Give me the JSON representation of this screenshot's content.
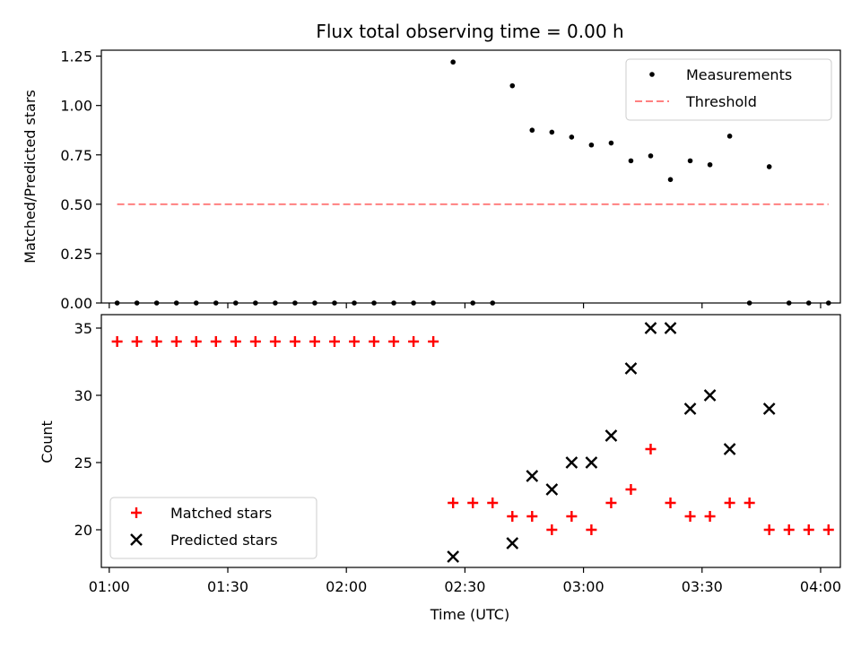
{
  "chart_data": {
    "title": "Flux total observing time = 0.00 h",
    "xlabel": "Time (UTC)",
    "xlim": [
      "00:58",
      "04:05"
    ],
    "xticks": [
      "01:00",
      "01:30",
      "02:00",
      "02:30",
      "03:00",
      "03:30",
      "04:00"
    ],
    "panels": [
      {
        "type": "scatter",
        "ylabel": "Matched/Predicted stars",
        "ylim": [
          0,
          1.28
        ],
        "yticks": [
          "0.00",
          "0.25",
          "0.50",
          "0.75",
          "1.00",
          "1.25"
        ],
        "legend": "top-right",
        "series": [
          {
            "name": "Measurements",
            "type": "scatter",
            "color": "#000000",
            "marker": "dot",
            "points": [
              [
                "01:02",
                0
              ],
              [
                "01:07",
                0
              ],
              [
                "01:12",
                0
              ],
              [
                "01:17",
                0
              ],
              [
                "01:22",
                0
              ],
              [
                "01:27",
                0
              ],
              [
                "01:32",
                0
              ],
              [
                "01:37",
                0
              ],
              [
                "01:42",
                0
              ],
              [
                "01:47",
                0
              ],
              [
                "01:52",
                0
              ],
              [
                "01:57",
                0
              ],
              [
                "02:02",
                0
              ],
              [
                "02:07",
                0
              ],
              [
                "02:12",
                0
              ],
              [
                "02:17",
                0
              ],
              [
                "02:22",
                0
              ],
              [
                "02:27",
                1.22
              ],
              [
                "02:32",
                0
              ],
              [
                "02:37",
                0
              ],
              [
                "02:42",
                1.1
              ],
              [
                "02:47",
                0.875
              ],
              [
                "02:52",
                0.865
              ],
              [
                "02:57",
                0.84
              ],
              [
                "03:02",
                0.8
              ],
              [
                "03:07",
                0.81
              ],
              [
                "03:12",
                0.72
              ],
              [
                "03:17",
                0.745
              ],
              [
                "03:22",
                0.625
              ],
              [
                "03:27",
                0.72
              ],
              [
                "03:32",
                0.7
              ],
              [
                "03:37",
                0.845
              ],
              [
                "03:42",
                0
              ],
              [
                "03:47",
                0.69
              ],
              [
                "03:52",
                0
              ],
              [
                "03:57",
                0
              ],
              [
                "04:02",
                0
              ]
            ]
          },
          {
            "name": "Threshold",
            "type": "line",
            "color": "#ff8080",
            "style": "dashed",
            "points": [
              [
                "01:02",
                0.5
              ],
              [
                "04:02",
                0.5
              ]
            ]
          }
        ]
      },
      {
        "type": "scatter",
        "ylabel": "Count",
        "ylim": [
          17.2,
          36
        ],
        "yticks": [
          "20",
          "25",
          "30",
          "35"
        ],
        "legend": "bottom-left",
        "series": [
          {
            "name": "Matched stars",
            "type": "scatter",
            "color": "#ff0000",
            "marker": "plus",
            "points": [
              [
                "01:02",
                34
              ],
              [
                "01:07",
                34
              ],
              [
                "01:12",
                34
              ],
              [
                "01:17",
                34
              ],
              [
                "01:22",
                34
              ],
              [
                "01:27",
                34
              ],
              [
                "01:32",
                34
              ],
              [
                "01:37",
                34
              ],
              [
                "01:42",
                34
              ],
              [
                "01:47",
                34
              ],
              [
                "01:52",
                34
              ],
              [
                "01:57",
                34
              ],
              [
                "02:02",
                34
              ],
              [
                "02:07",
                34
              ],
              [
                "02:12",
                34
              ],
              [
                "02:17",
                34
              ],
              [
                "02:22",
                34
              ],
              [
                "02:27",
                22
              ],
              [
                "02:32",
                22
              ],
              [
                "02:37",
                22
              ],
              [
                "02:42",
                21
              ],
              [
                "02:47",
                21
              ],
              [
                "02:52",
                20
              ],
              [
                "02:57",
                21
              ],
              [
                "03:02",
                20
              ],
              [
                "03:07",
                22
              ],
              [
                "03:12",
                23
              ],
              [
                "03:17",
                26
              ],
              [
                "03:22",
                22
              ],
              [
                "03:27",
                21
              ],
              [
                "03:32",
                21
              ],
              [
                "03:37",
                22
              ],
              [
                "03:42",
                22
              ],
              [
                "03:47",
                20
              ],
              [
                "03:52",
                20
              ],
              [
                "03:57",
                20
              ],
              [
                "04:02",
                20
              ]
            ]
          },
          {
            "name": "Predicted stars",
            "type": "scatter",
            "color": "#000000",
            "marker": "x",
            "points": [
              [
                "02:27",
                18
              ],
              [
                "02:42",
                19
              ],
              [
                "02:47",
                24
              ],
              [
                "02:52",
                23
              ],
              [
                "02:57",
                25
              ],
              [
                "03:02",
                25
              ],
              [
                "03:07",
                27
              ],
              [
                "03:12",
                32
              ],
              [
                "03:17",
                35
              ],
              [
                "03:22",
                35
              ],
              [
                "03:27",
                29
              ],
              [
                "03:32",
                30
              ],
              [
                "03:37",
                26
              ],
              [
                "03:47",
                29
              ]
            ]
          }
        ]
      }
    ]
  }
}
